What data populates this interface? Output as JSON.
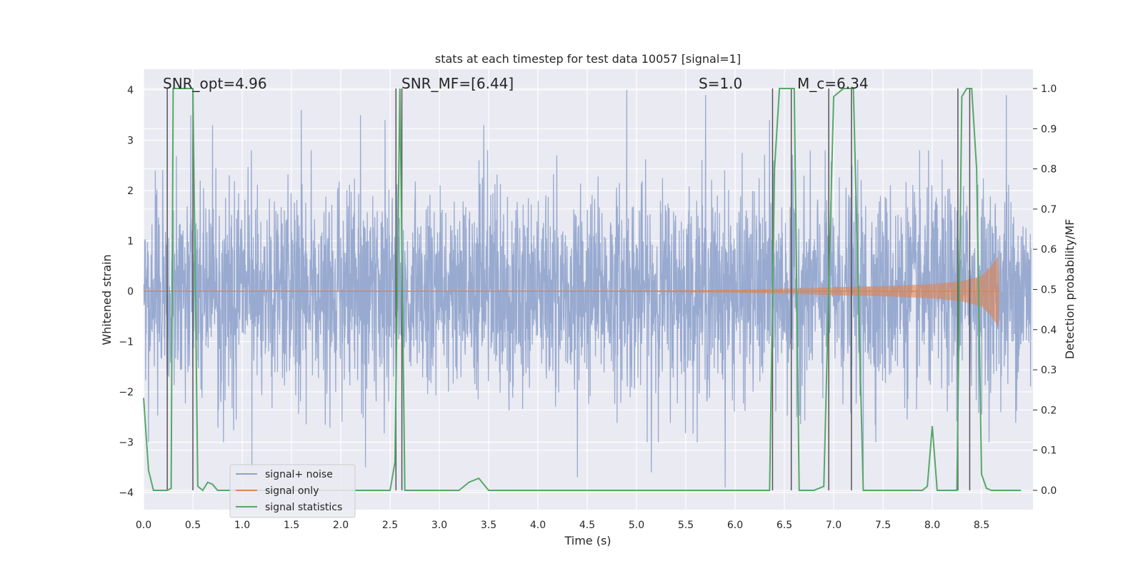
{
  "chart_data": {
    "type": "line",
    "title": "stats at each timestep for test data 10057 [signal=1]",
    "xlabel": "Time (s)",
    "ylabel": "Whitened strain",
    "y2label": "Detection probability/MF",
    "xlim": [
      0.0,
      9.0
    ],
    "ylim": [
      -4.2,
      4.4
    ],
    "y2lim": [
      -0.04,
      1.04
    ],
    "xticks": [
      "0.0",
      "0.5",
      "1.0",
      "1.5",
      "2.0",
      "2.5",
      "3.0",
      "3.5",
      "4.0",
      "4.5",
      "5.0",
      "5.5",
      "6.0",
      "6.5",
      "7.0",
      "7.5",
      "8.0",
      "8.5"
    ],
    "yticks": [
      "−4",
      "−3",
      "−2",
      "−1",
      "0",
      "1",
      "2",
      "3",
      "4"
    ],
    "y2ticks": [
      "0.0",
      "0.1",
      "0.2",
      "0.3",
      "0.4",
      "0.5",
      "0.6",
      "0.7",
      "0.8",
      "0.9",
      "1.0"
    ],
    "grid": true,
    "legend_position": "lower-left",
    "colors": {
      "noise": "#8fa3cc",
      "signal": "#dd8452",
      "stats": "#55a868",
      "vlines": "#555555",
      "background": "#eaeaf2"
    },
    "annotations": {
      "snr_opt": "SNR_opt=4.96",
      "snr_mf": "SNR_MF=[6.44]",
      "s": "S=1.0",
      "mc": "M_c=6.34"
    },
    "series": [
      {
        "name": "signal+ noise",
        "description_range": [
          -3.9,
          4.0
        ],
        "notable_peaks": [
          {
            "x": 0.12,
            "y": 2.4
          },
          {
            "x": 0.48,
            "y": 3.5
          },
          {
            "x": 0.7,
            "y": 3.3
          },
          {
            "x": 1.6,
            "y": 3.6
          },
          {
            "x": 2.2,
            "y": 3.5
          },
          {
            "x": 2.45,
            "y": 3.4
          },
          {
            "x": 3.45,
            "y": 3.3
          },
          {
            "x": 4.9,
            "y": 4.0
          },
          {
            "x": 5.7,
            "y": 3.9
          },
          {
            "x": 6.35,
            "y": 3.4
          },
          {
            "x": 8.75,
            "y": 3.9
          },
          {
            "x": 1.1,
            "y": -3.5
          },
          {
            "x": 2.25,
            "y": -3.5
          },
          {
            "x": 4.4,
            "y": -3.7
          },
          {
            "x": 5.15,
            "y": -3.6
          },
          {
            "x": 5.9,
            "y": -3.9
          },
          {
            "x": 7.3,
            "y": -3.7
          }
        ]
      },
      {
        "name": "signal only",
        "envelope": [
          {
            "x": 0.0,
            "y": 0.0
          },
          {
            "x": 4.0,
            "y": 0.005
          },
          {
            "x": 5.0,
            "y": 0.01
          },
          {
            "x": 6.0,
            "y": 0.03
          },
          {
            "x": 6.5,
            "y": 0.05
          },
          {
            "x": 7.0,
            "y": 0.08
          },
          {
            "x": 7.5,
            "y": 0.1
          },
          {
            "x": 8.0,
            "y": 0.14
          },
          {
            "x": 8.3,
            "y": 0.2
          },
          {
            "x": 8.5,
            "y": 0.3
          },
          {
            "x": 8.6,
            "y": 0.5
          },
          {
            "x": 8.67,
            "y": 0.7
          },
          {
            "x": 8.68,
            "y": 0.0
          }
        ]
      },
      {
        "name": "signal statistics",
        "x": [
          0.0,
          0.05,
          0.1,
          0.2,
          0.24,
          0.28,
          0.3,
          0.35,
          0.4,
          0.45,
          0.5,
          0.55,
          0.6,
          0.65,
          0.7,
          0.75,
          0.8,
          0.85,
          2.5,
          2.55,
          2.6,
          2.65,
          2.7,
          3.2,
          3.3,
          3.4,
          3.5,
          4.0,
          6.35,
          6.4,
          6.45,
          6.5,
          6.55,
          6.6,
          6.65,
          6.7,
          6.8,
          6.9,
          6.95,
          7.0,
          7.05,
          7.1,
          7.15,
          7.2,
          7.25,
          7.3,
          7.9,
          7.95,
          8.0,
          8.05,
          8.1,
          8.2,
          8.25,
          8.3,
          8.35,
          8.4,
          8.45,
          8.5,
          8.55,
          8.6,
          8.7,
          8.9
        ],
        "values": [
          0.23,
          0.05,
          0.0,
          0.0,
          0.0,
          0.005,
          1.0,
          1.0,
          1.0,
          1.0,
          1.0,
          0.01,
          0.0,
          0.02,
          0.015,
          0.0,
          0.0,
          0.0,
          0.0,
          0.07,
          1.0,
          0.0,
          0.0,
          0.0,
          0.02,
          0.03,
          0.0,
          0.0,
          0.0,
          0.8,
          1.0,
          1.0,
          1.0,
          1.0,
          0.0,
          0.0,
          0.0,
          0.01,
          0.5,
          0.98,
          0.99,
          1.0,
          1.0,
          1.0,
          0.5,
          0.0,
          0.0,
          0.01,
          0.16,
          0.0,
          0.0,
          0.0,
          0.0,
          0.98,
          1.0,
          1.0,
          0.8,
          0.04,
          0.005,
          0.0,
          0.0,
          0.0
        ]
      }
    ],
    "vertical_lines_x": [
      0.24,
      0.5,
      2.56,
      2.62,
      6.38,
      6.57,
      6.95,
      7.18,
      8.26,
      8.38
    ],
    "legend": [
      "signal+ noise",
      "signal only",
      "signal statistics"
    ]
  }
}
